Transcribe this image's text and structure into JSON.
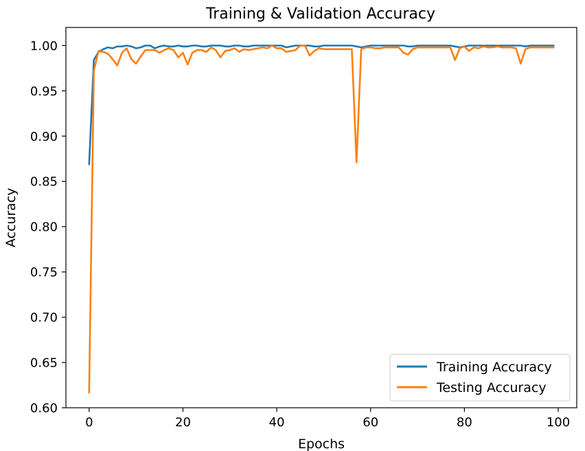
{
  "chart_data": {
    "type": "line",
    "title": "Training & Validation Accuracy",
    "xlabel": "Epochs",
    "ylabel": "Accuracy",
    "xlim": [
      -4.95,
      103.95
    ],
    "ylim": [
      0.6,
      1.02
    ],
    "xticks": [
      0,
      20,
      40,
      60,
      80,
      100
    ],
    "xtick_labels": [
      "0",
      "20",
      "40",
      "60",
      "80",
      "100"
    ],
    "yticks": [
      0.6,
      0.65,
      0.7,
      0.75,
      0.8,
      0.85,
      0.9,
      0.95,
      1.0
    ],
    "ytick_labels": [
      "0.60",
      "0.65",
      "0.70",
      "0.75",
      "0.80",
      "0.85",
      "0.90",
      "0.95",
      "1.00"
    ],
    "grid": false,
    "legend_position": "lower-right",
    "series": [
      {
        "name": "Training Accuracy",
        "color": "#1f77b4",
        "x": [
          0,
          1,
          2,
          3,
          4,
          5,
          6,
          7,
          8,
          9,
          10,
          11,
          12,
          13,
          14,
          15,
          16,
          17,
          18,
          19,
          20,
          21,
          22,
          23,
          24,
          25,
          26,
          27,
          28,
          29,
          30,
          31,
          32,
          33,
          34,
          35,
          36,
          37,
          38,
          39,
          40,
          41,
          42,
          43,
          44,
          45,
          46,
          47,
          48,
          49,
          50,
          51,
          52,
          53,
          54,
          55,
          56,
          57,
          58,
          59,
          60,
          61,
          62,
          63,
          64,
          65,
          66,
          67,
          68,
          69,
          70,
          71,
          72,
          73,
          74,
          75,
          76,
          77,
          78,
          79,
          80,
          81,
          82,
          83,
          84,
          85,
          86,
          87,
          88,
          89,
          90,
          91,
          92,
          93,
          94,
          95,
          96,
          97,
          98,
          99
        ],
        "y": [
          0.869,
          0.984,
          0.993,
          0.996,
          0.998,
          0.997,
          0.999,
          0.999,
          1.0,
          0.999,
          0.997,
          0.998,
          1.0,
          1.0,
          0.997,
          0.999,
          1.0,
          0.999,
          0.999,
          1.0,
          0.999,
          0.999,
          1.0,
          1.0,
          0.999,
          0.999,
          1.0,
          1.0,
          1.0,
          0.999,
          0.999,
          1.0,
          1.0,
          0.999,
          0.999,
          1.0,
          1.0,
          1.0,
          1.0,
          1.0,
          1.0,
          1.0,
          0.998,
          0.999,
          1.0,
          1.0,
          1.0,
          1.0,
          0.999,
          0.999,
          1.0,
          1.0,
          1.0,
          1.0,
          1.0,
          1.0,
          1.0,
          0.999,
          0.998,
          0.999,
          1.0,
          1.0,
          1.0,
          1.0,
          1.0,
          1.0,
          1.0,
          1.0,
          0.999,
          0.999,
          1.0,
          1.0,
          1.0,
          1.0,
          1.0,
          1.0,
          1.0,
          1.0,
          0.999,
          0.998,
          0.999,
          1.0,
          1.0,
          1.0,
          1.0,
          1.0,
          1.0,
          1.0,
          1.0,
          1.0,
          1.0,
          1.0,
          1.0,
          0.999,
          1.0,
          1.0,
          1.0,
          1.0,
          1.0,
          1.0
        ]
      },
      {
        "name": "Testing Accuracy",
        "color": "#ff7f0e",
        "x": [
          0,
          1,
          2,
          3,
          4,
          5,
          6,
          7,
          8,
          9,
          10,
          11,
          12,
          13,
          14,
          15,
          16,
          17,
          18,
          19,
          20,
          21,
          22,
          23,
          24,
          25,
          26,
          27,
          28,
          29,
          30,
          31,
          32,
          33,
          34,
          35,
          36,
          37,
          38,
          39,
          40,
          41,
          42,
          43,
          44,
          45,
          46,
          47,
          48,
          49,
          50,
          51,
          52,
          53,
          54,
          55,
          56,
          57,
          58,
          59,
          60,
          61,
          62,
          63,
          64,
          65,
          66,
          67,
          68,
          69,
          70,
          71,
          72,
          73,
          74,
          75,
          76,
          77,
          78,
          79,
          80,
          81,
          82,
          83,
          84,
          85,
          86,
          87,
          88,
          89,
          90,
          91,
          92,
          93,
          94,
          95,
          96,
          97,
          98,
          99
        ],
        "y": [
          0.617,
          0.972,
          0.994,
          0.993,
          0.991,
          0.985,
          0.978,
          0.992,
          0.997,
          0.985,
          0.98,
          0.988,
          0.995,
          0.995,
          0.995,
          0.992,
          0.995,
          0.997,
          0.995,
          0.987,
          0.992,
          0.979,
          0.992,
          0.995,
          0.995,
          0.993,
          0.998,
          0.995,
          0.987,
          0.994,
          0.995,
          0.997,
          0.993,
          0.996,
          0.995,
          0.996,
          0.997,
          0.998,
          0.997,
          1.0,
          0.997,
          0.997,
          0.993,
          0.994,
          0.995,
          1.0,
          1.0,
          0.989,
          0.994,
          0.997,
          0.996,
          0.996,
          0.996,
          0.996,
          0.996,
          0.996,
          0.996,
          0.871,
          0.996,
          0.998,
          0.998,
          0.997,
          0.997,
          0.998,
          0.998,
          0.998,
          0.998,
          0.992,
          0.99,
          0.996,
          0.998,
          0.998,
          0.998,
          0.998,
          0.998,
          0.998,
          0.998,
          0.998,
          0.984,
          0.997,
          0.999,
          0.994,
          0.998,
          0.997,
          0.999,
          0.998,
          0.998,
          0.999,
          0.998,
          0.998,
          0.998,
          0.997,
          0.98,
          0.996,
          0.998,
          0.998,
          0.998,
          0.998,
          0.998,
          0.998
        ]
      }
    ]
  }
}
